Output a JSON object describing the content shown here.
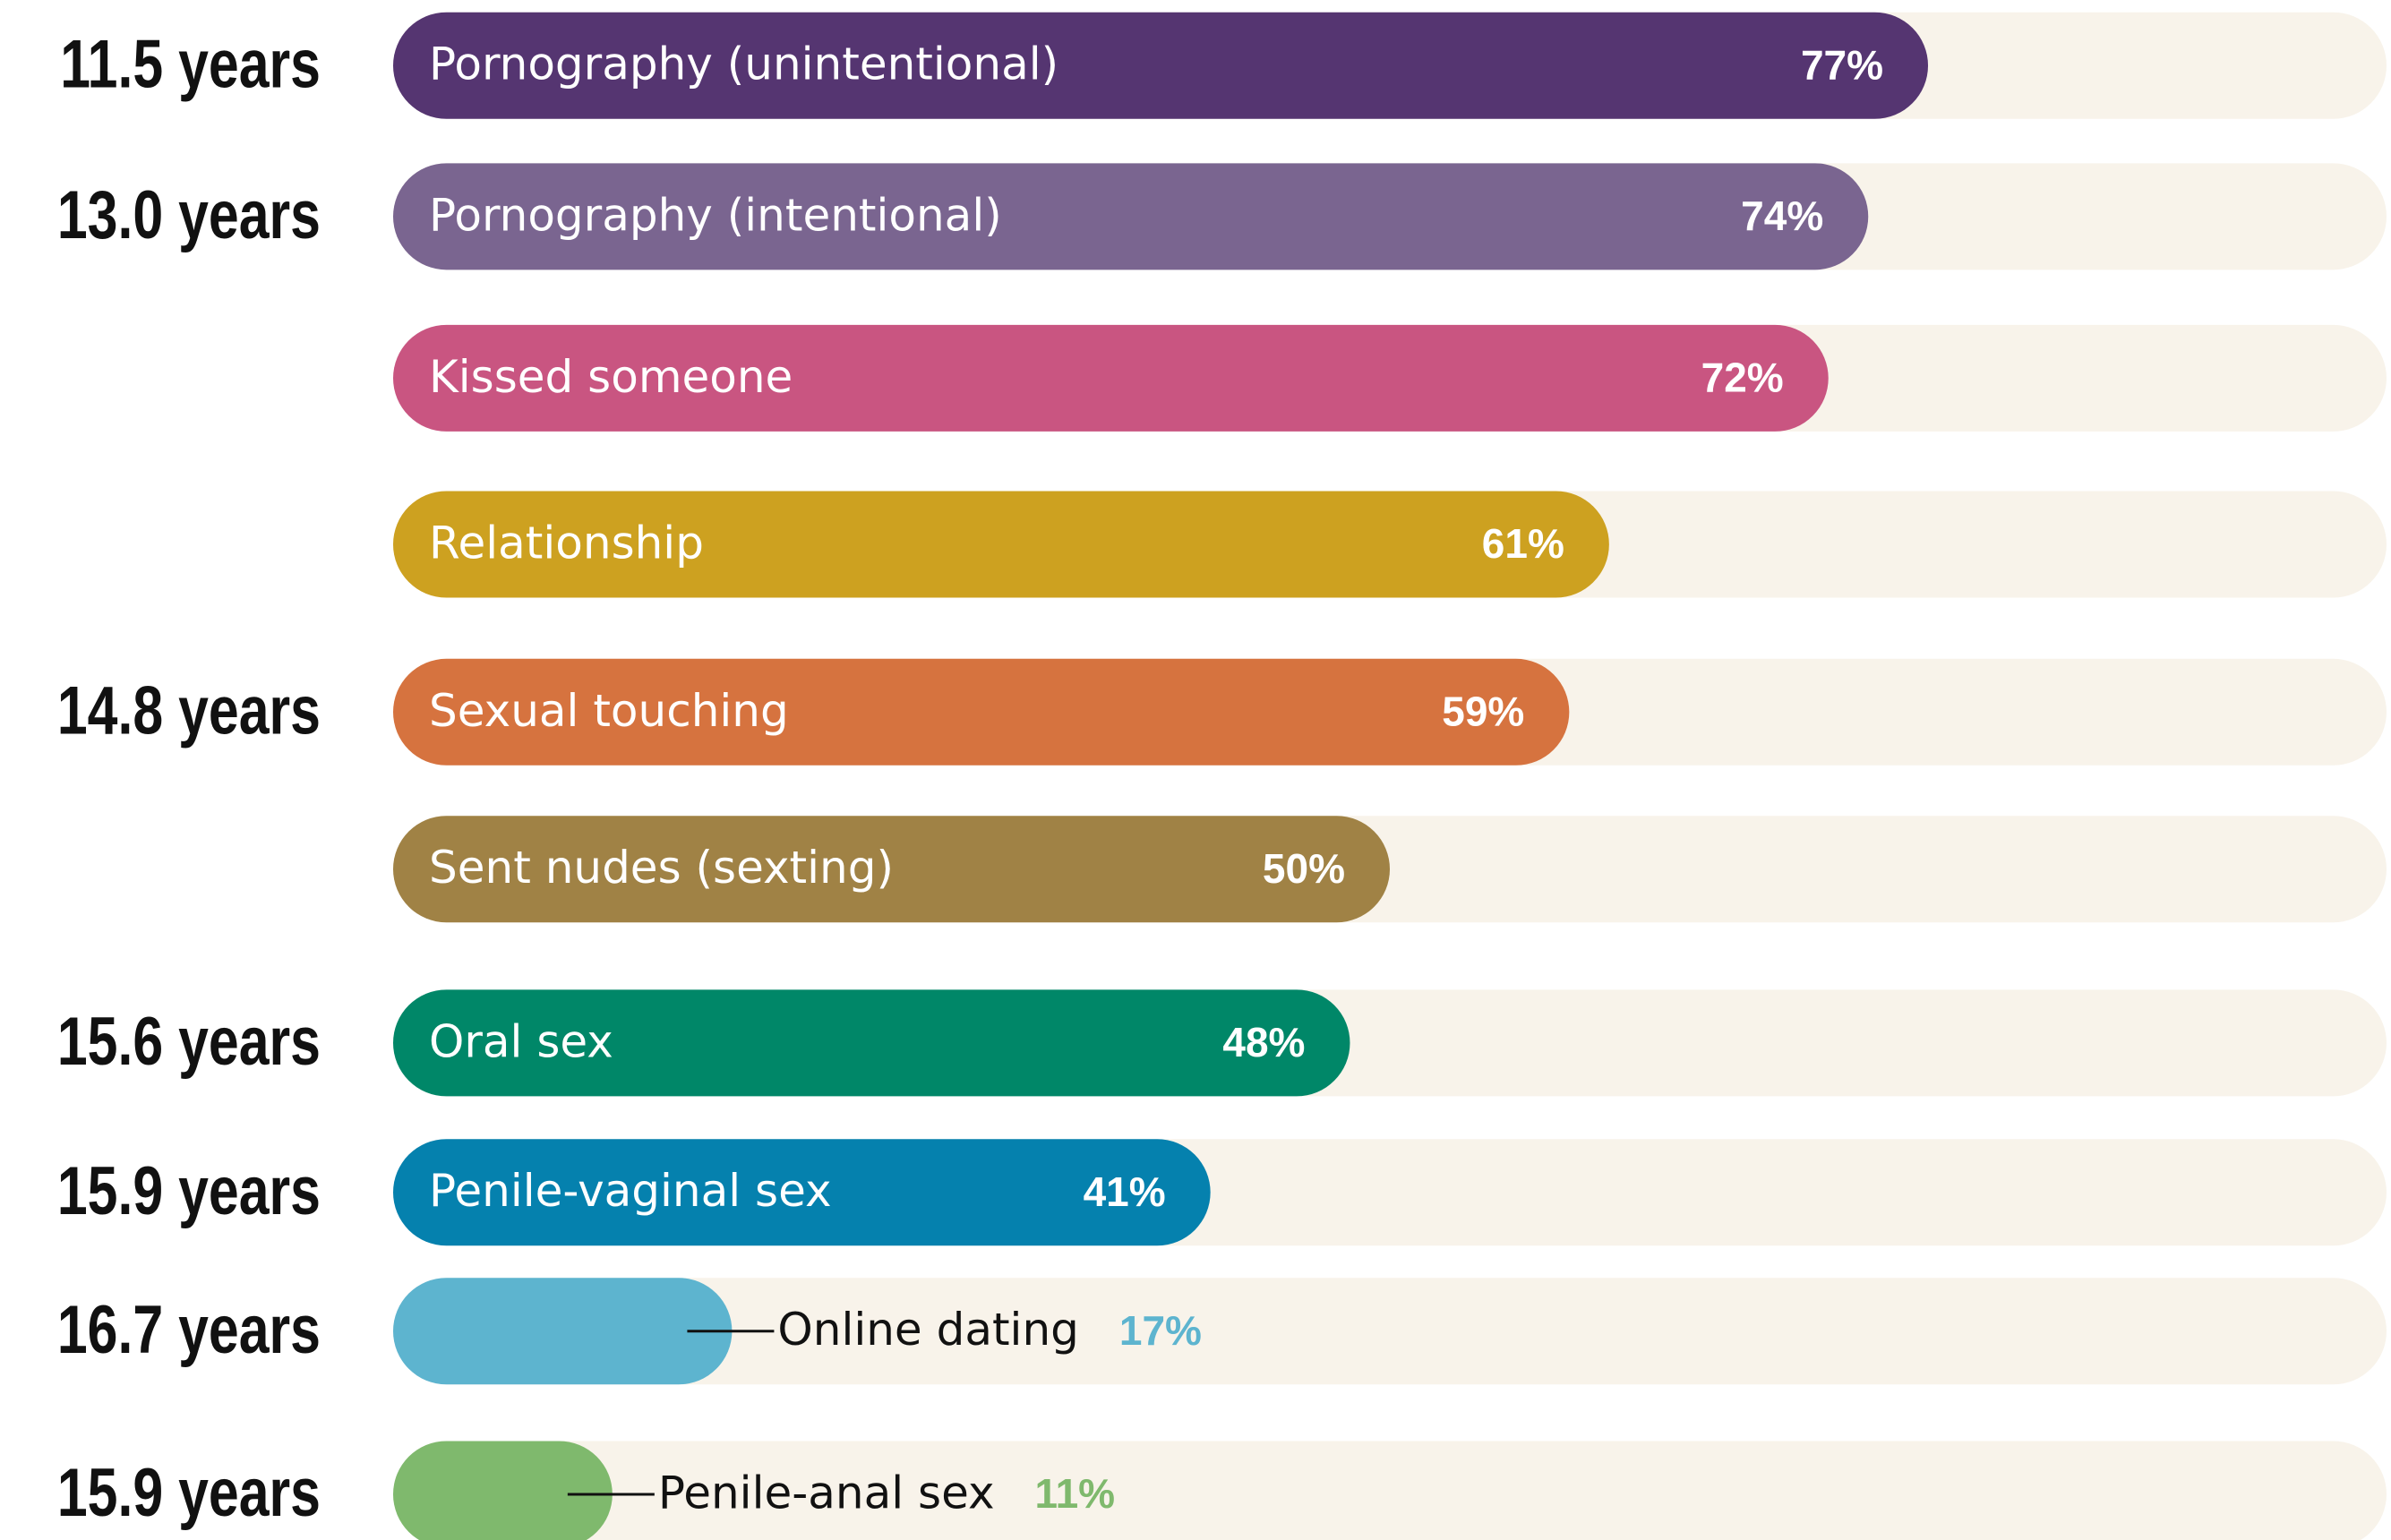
{
  "chart_data": {
    "type": "bar",
    "categories": [
      "Pornography (unintentional)",
      "Pornography (intentional)",
      "Kissed someone",
      "Relationship",
      "Sexual touching",
      "Sent nudes (sexting)",
      "Oral sex",
      "Penile-vaginal sex",
      "Online dating",
      "Penile-anal sex"
    ],
    "values": [
      77,
      74,
      72,
      61,
      59,
      50,
      48,
      41,
      17,
      11
    ],
    "value_labels": [
      "77%",
      "74%",
      "72%",
      "61%",
      "59%",
      "50%",
      "48%",
      "41%",
      "17%",
      "11%"
    ],
    "colors": [
      "#553571",
      "#7a6590",
      "#c95581",
      "#cda120",
      "#d6733f",
      "#a08245",
      "#008768",
      "#0581ae",
      "#5db4cf",
      "#7fb96d"
    ],
    "annotations": [
      "11.5 years",
      "13.0 years",
      null,
      null,
      "14.8 years",
      null,
      "15.6 years",
      "15.9 years",
      "16.7 years",
      "15.9 years"
    ],
    "xlim": [
      0,
      100
    ]
  }
}
